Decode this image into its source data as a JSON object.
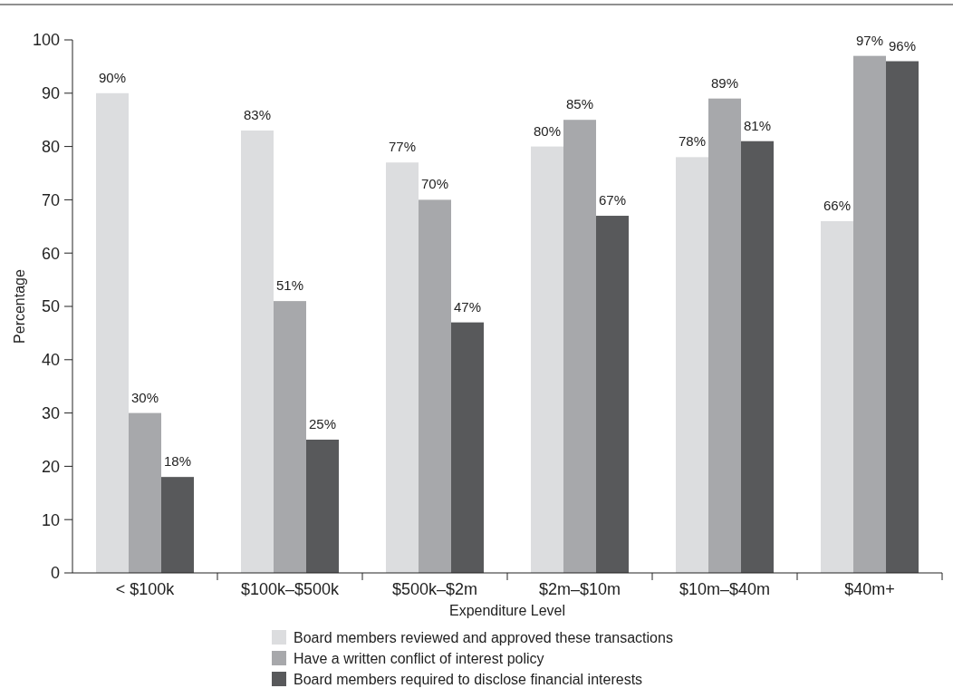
{
  "chart_data": {
    "type": "bar",
    "xlabel": "Expenditure Level",
    "ylabel": "Percentage",
    "categories": [
      "< $100k",
      "$100k–$500k",
      "$500k–$2m",
      "$2m–$10m",
      "$10m–$40m",
      "$40m+"
    ],
    "series": [
      {
        "name": "Board members reviewed and approved these transactions",
        "color": "#dcdddf",
        "values": [
          90,
          83,
          77,
          80,
          78,
          66
        ],
        "value_labels": [
          "90%",
          "83%",
          "77%",
          "80%",
          "78%",
          "66%"
        ]
      },
      {
        "name": "Have a written conflict of interest policy",
        "color": "#a7a8ab",
        "values": [
          30,
          51,
          70,
          85,
          89,
          97
        ],
        "value_labels": [
          "30%",
          "51%",
          "70%",
          "85%",
          "89%",
          "97%"
        ]
      },
      {
        "name": "Board members required to disclose financial interests",
        "color": "#58595b",
        "values": [
          18,
          25,
          47,
          67,
          81,
          96
        ],
        "value_labels": [
          "18%",
          "25%",
          "47%",
          "67%",
          "81%",
          "96%"
        ]
      }
    ],
    "ylim": [
      0,
      100
    ],
    "yticks": [
      0,
      10,
      20,
      30,
      40,
      50,
      60,
      70,
      80,
      90,
      100
    ],
    "legend": "bottom"
  }
}
